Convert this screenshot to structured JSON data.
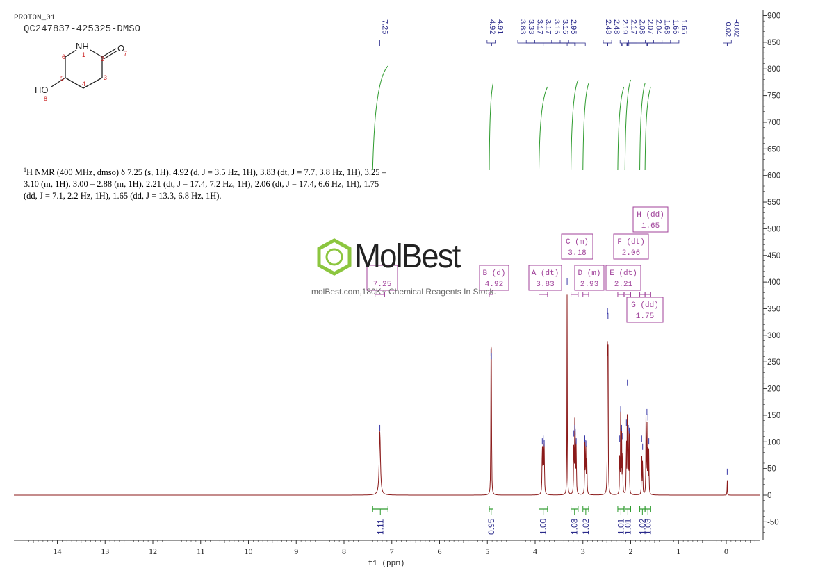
{
  "header": {
    "experiment": "PROTON_01",
    "sample": "QC247837-425325-DMSO"
  },
  "summary": {
    "sup": "1",
    "line1": "H NMR (400 MHz, dmso) δ 7.25 (s, 1H), 4.92 (d, J = 3.5 Hz, 1H), 3.83 (dt, J = 7.7, 3.8 Hz, 1H), 3.25 –",
    "line2": "3.10 (m, 1H), 3.00 – 2.88 (m, 1H), 2.21 (dt, J = 17.4, 7.2 Hz, 1H), 2.06 (dt, J = 17.4, 6.6 Hz, 1H), 1.75",
    "line3": "(dd, J = 7.1, 2.2 Hz, 1H), 1.65 (dd, J = 13.3, 6.8 Hz, 1H)."
  },
  "watermark": {
    "brand": "MolBest",
    "tagline": "molBest.com,180K+ Chemical Reagents In Stock."
  },
  "molecule": {
    "atoms": [
      {
        "label": "NH",
        "num": "1"
      },
      {
        "label": "",
        "num": "2"
      },
      {
        "label": "",
        "num": "3"
      },
      {
        "label": "",
        "num": "4"
      },
      {
        "label": "",
        "num": "5"
      },
      {
        "label": "",
        "num": "6"
      },
      {
        "label": "O",
        "num": "7"
      },
      {
        "label": "HO",
        "num": "8"
      }
    ]
  },
  "chart_data": {
    "type": "line",
    "xlabel": "f1 (ppm)",
    "x_ticks": [
      14,
      13,
      12,
      11,
      10,
      9,
      8,
      7,
      6,
      5,
      4,
      3,
      2,
      1,
      0
    ],
    "xlim": [
      14.9,
      -0.7
    ],
    "y_ticks": [
      900,
      850,
      800,
      750,
      700,
      650,
      600,
      550,
      500,
      450,
      400,
      350,
      300,
      250,
      200,
      150,
      100,
      50,
      0,
      -50
    ],
    "ylim": [
      -75,
      905
    ],
    "peak_labels": [
      "7.25",
      "4.92",
      "4.91",
      "3.83",
      "3.33",
      "3.17",
      "3.17",
      "3.16",
      "3.16",
      "2.95",
      "2.48",
      "2.48",
      "2.19",
      "2.17",
      "2.08",
      "2.07",
      "2.04",
      "1.68",
      "1.66",
      "1.65",
      "-0.02",
      "-0.02"
    ],
    "peaks": [
      {
        "ppm": 7.25,
        "height": 120,
        "width": 0.015
      },
      {
        "ppm": 4.925,
        "height": 262,
        "width": 0.004
      },
      {
        "ppm": 4.915,
        "height": 255,
        "width": 0.004
      },
      {
        "ppm": 3.85,
        "height": 95,
        "width": 0.006
      },
      {
        "ppm": 3.83,
        "height": 100,
        "width": 0.006
      },
      {
        "ppm": 3.81,
        "height": 92,
        "width": 0.006
      },
      {
        "ppm": 3.33,
        "height": 395,
        "width": 0.004
      },
      {
        "ppm": 3.19,
        "height": 110,
        "width": 0.005
      },
      {
        "ppm": 3.17,
        "height": 120,
        "width": 0.005
      },
      {
        "ppm": 3.16,
        "height": 112,
        "width": 0.005
      },
      {
        "ppm": 3.14,
        "height": 95,
        "width": 0.005
      },
      {
        "ppm": 2.96,
        "height": 100,
        "width": 0.005
      },
      {
        "ppm": 2.94,
        "height": 92,
        "width": 0.005
      },
      {
        "ppm": 2.92,
        "height": 90,
        "width": 0.005
      },
      {
        "ppm": 2.485,
        "height": 340,
        "width": 0.004
      },
      {
        "ppm": 2.475,
        "height": 330,
        "width": 0.004
      },
      {
        "ppm": 2.23,
        "height": 100,
        "width": 0.004
      },
      {
        "ppm": 2.21,
        "height": 155,
        "width": 0.004
      },
      {
        "ppm": 2.19,
        "height": 120,
        "width": 0.004
      },
      {
        "ppm": 2.17,
        "height": 105,
        "width": 0.004
      },
      {
        "ppm": 2.09,
        "height": 130,
        "width": 0.004
      },
      {
        "ppm": 2.07,
        "height": 205,
        "width": 0.004
      },
      {
        "ppm": 2.05,
        "height": 120,
        "width": 0.004
      },
      {
        "ppm": 2.03,
        "height": 115,
        "width": 0.004
      },
      {
        "ppm": 1.77,
        "height": 100,
        "width": 0.004
      },
      {
        "ppm": 1.75,
        "height": 85,
        "width": 0.004
      },
      {
        "ppm": 1.68,
        "height": 145,
        "width": 0.004
      },
      {
        "ppm": 1.66,
        "height": 150,
        "width": 0.004
      },
      {
        "ppm": 1.64,
        "height": 140,
        "width": 0.004
      },
      {
        "ppm": 1.62,
        "height": 95,
        "width": 0.004
      },
      {
        "ppm": -0.02,
        "height": 38,
        "width": 0.003
      }
    ],
    "multiplets": [
      {
        "id": "A",
        "type": "dt",
        "shift": "3.83",
        "range": [
          3.92,
          3.74
        ]
      },
      {
        "id": "B",
        "type": "d",
        "shift": "4.92",
        "range": [
          4.96,
          4.88
        ]
      },
      {
        "id": "C",
        "type": "m",
        "shift": "3.18",
        "range": [
          3.25,
          3.1
        ]
      },
      {
        "id": "D",
        "type": "m",
        "shift": "2.93",
        "range": [
          3.0,
          2.88
        ]
      },
      {
        "id": "E",
        "type": "dt",
        "shift": "2.21",
        "range": [
          2.27,
          2.14
        ]
      },
      {
        "id": "F",
        "type": "dt",
        "shift": "2.06",
        "range": [
          2.12,
          2.0
        ]
      },
      {
        "id": "G",
        "type": "dd",
        "shift": "1.75",
        "range": [
          1.81,
          1.7
        ]
      },
      {
        "id": "H",
        "type": "dd",
        "shift": "1.65",
        "range": [
          1.7,
          1.58
        ]
      },
      {
        "id": "",
        "type": "",
        "shift": "7.25",
        "range": [
          7.35,
          7.15
        ]
      }
    ],
    "integrals": [
      {
        "value": "1.11",
        "from": 7.4,
        "to": 7.08
      },
      {
        "value": "0.95",
        "from": 4.96,
        "to": 4.88
      },
      {
        "value": "1.00",
        "from": 3.92,
        "to": 3.74
      },
      {
        "value": "1.03",
        "from": 3.25,
        "to": 3.1
      },
      {
        "value": "1.02",
        "from": 3.0,
        "to": 2.88
      },
      {
        "value": "1.01",
        "from": 2.27,
        "to": 2.14
      },
      {
        "value": "1.01",
        "from": 2.12,
        "to": 2.0
      },
      {
        "value": "1.02",
        "from": 1.81,
        "to": 1.7
      },
      {
        "value": "1.03",
        "from": 1.7,
        "to": 1.58
      }
    ]
  },
  "colors": {
    "spectrum": "#8b1a1a",
    "integral": "#2e9b2e",
    "multiplet": "#a0429a",
    "peaklabel": "#2a2a8a",
    "axis": "#333333",
    "logo": "#8cc63f"
  }
}
